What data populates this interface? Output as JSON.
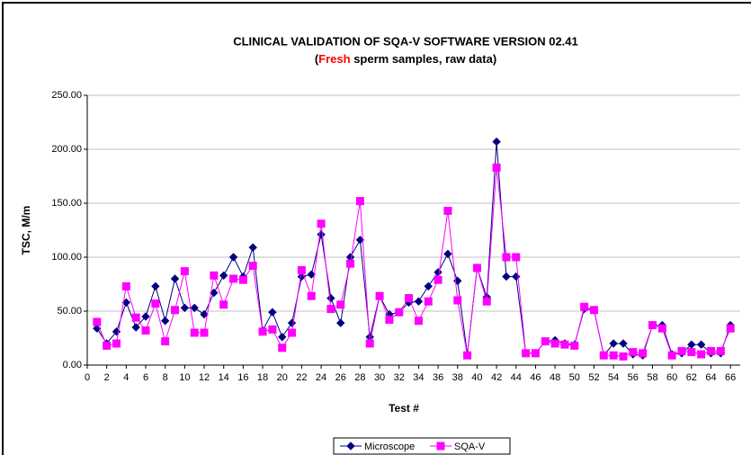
{
  "chart_data": {
    "type": "line",
    "title": "CLINICAL VALIDATION OF SQA-V SOFTWARE VERSION 02.41",
    "subtitle_parts": [
      "(",
      "Fresh",
      " sperm samples, raw data)"
    ],
    "subtitle_colors": [
      "#000000",
      "#ff0000",
      "#000000"
    ],
    "x_label": "Test #",
    "y_label": "TSC, M/m",
    "x": [
      1,
      2,
      3,
      4,
      5,
      6,
      7,
      8,
      9,
      10,
      11,
      12,
      13,
      14,
      15,
      16,
      17,
      18,
      19,
      20,
      21,
      22,
      23,
      24,
      25,
      26,
      27,
      28,
      29,
      30,
      31,
      32,
      33,
      34,
      35,
      36,
      37,
      38,
      39,
      40,
      41,
      42,
      43,
      44,
      45,
      46,
      47,
      48,
      49,
      50,
      51,
      52,
      53,
      54,
      55,
      56,
      57,
      58,
      59,
      60,
      61,
      62,
      63,
      64,
      65,
      66
    ],
    "series": [
      {
        "name": "Microscope",
        "color": "#000080",
        "marker": "diamond",
        "values": [
          34,
          20,
          31,
          58,
          35,
          45,
          73,
          41,
          80,
          53,
          53,
          47,
          67,
          83,
          100,
          82,
          109,
          32,
          49,
          26,
          39,
          82,
          84,
          121,
          62,
          39,
          100,
          116,
          26,
          64,
          47,
          49,
          58,
          59,
          73,
          86,
          103,
          78,
          10,
          90,
          63,
          207,
          82,
          82,
          11,
          11,
          22,
          23,
          20,
          19,
          52,
          51,
          9,
          20,
          20,
          10,
          9,
          37,
          37,
          10,
          11,
          19,
          19,
          11,
          11,
          37
        ]
      },
      {
        "name": "SQA-V",
        "color": "#ff00ff",
        "marker": "square",
        "values": [
          40,
          18,
          20,
          73,
          44,
          32,
          57,
          22,
          51,
          87,
          30,
          30,
          83,
          56,
          80,
          79,
          92,
          31,
          33,
          16,
          30,
          88,
          64,
          131,
          52,
          56,
          94,
          152,
          20,
          64,
          42,
          49,
          62,
          41,
          59,
          79,
          143,
          60,
          9,
          90,
          59,
          183,
          100,
          100,
          11,
          11,
          22,
          20,
          19,
          18,
          54,
          51,
          9,
          9,
          8,
          12,
          11,
          37,
          34,
          9,
          13,
          12,
          10,
          13,
          13,
          34
        ]
      }
    ],
    "xlim": [
      0,
      67
    ],
    "xticks": [
      0,
      2,
      4,
      6,
      8,
      10,
      12,
      14,
      16,
      18,
      20,
      22,
      24,
      26,
      28,
      30,
      32,
      34,
      36,
      38,
      40,
      42,
      44,
      46,
      48,
      50,
      52,
      54,
      56,
      58,
      60,
      62,
      64,
      66
    ],
    "ylim": [
      0,
      250
    ],
    "yticks": [
      {
        "value": 0,
        "label": "0.00"
      },
      {
        "value": 50,
        "label": "50.00"
      },
      {
        "value": 100,
        "label": "100.00"
      },
      {
        "value": 150,
        "label": "150.00"
      },
      {
        "value": 200,
        "label": "200.00"
      },
      {
        "value": 250,
        "label": "250.00"
      }
    ],
    "grid": true,
    "legend": "bottom"
  }
}
